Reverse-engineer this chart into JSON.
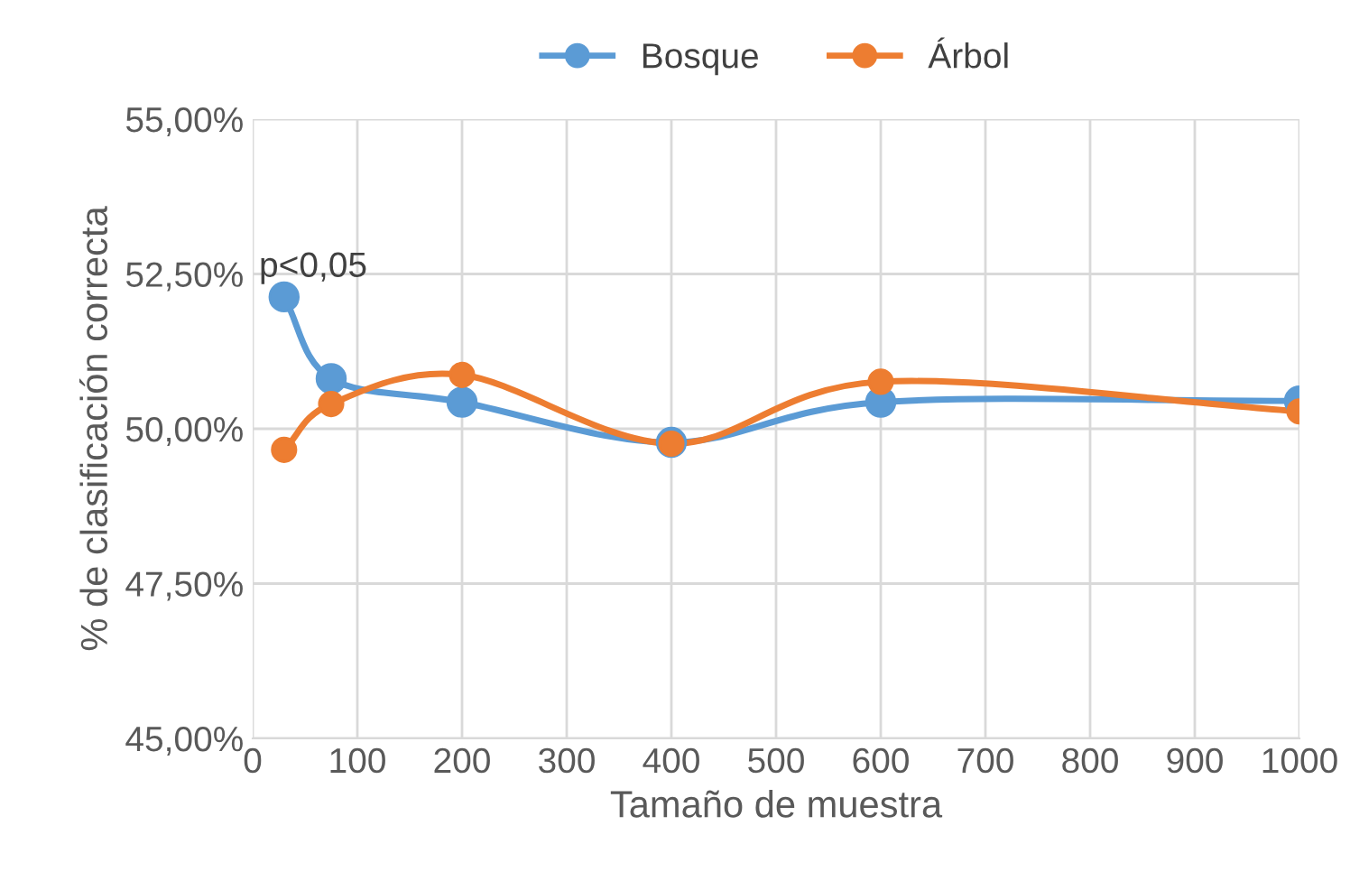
{
  "chart_data": {
    "type": "line",
    "xlabel": "Tamaño de muestra",
    "ylabel": "% de clasificación correcta",
    "x": [
      30,
      75,
      200,
      400,
      600,
      1000
    ],
    "series": [
      {
        "name": "Bosque",
        "color": "#5b9bd5",
        "values": [
          52.13,
          50.81,
          50.43,
          49.78,
          50.43,
          50.45
        ]
      },
      {
        "name": "Árbol",
        "color": "#ed7d31",
        "values": [
          49.66,
          50.4,
          50.87,
          49.76,
          50.76,
          50.28
        ]
      }
    ],
    "xlim": [
      0,
      1000
    ],
    "xticks": [
      0,
      100,
      200,
      300,
      400,
      500,
      600,
      700,
      800,
      900,
      1000
    ],
    "ylim": [
      45,
      55
    ],
    "yticks": [
      {
        "value": 45,
        "label": "45,00%"
      },
      {
        "value": 47.5,
        "label": "47,50%"
      },
      {
        "value": 50,
        "label": "50,00%"
      },
      {
        "value": 52.5,
        "label": "52,50%"
      },
      {
        "value": 55,
        "label": "55,00%"
      }
    ],
    "annotations": [
      {
        "text": "p<0,05",
        "x": 30,
        "y": 52.13
      }
    ],
    "grid": true,
    "legend": "top",
    "marker": "circle",
    "line_style": "solid"
  }
}
